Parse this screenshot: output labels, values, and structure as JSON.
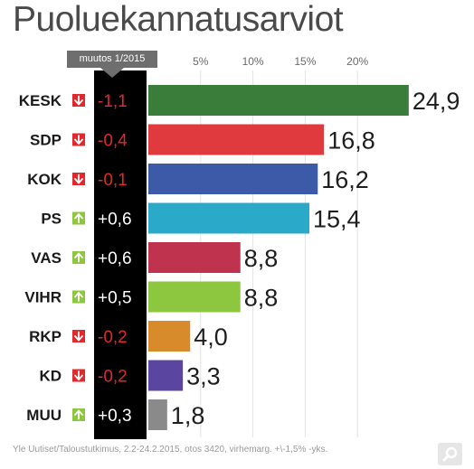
{
  "title": "Puoluekannatusarviot",
  "change_header": "muutos 1/2015",
  "source": "Yle Uutiset/Taloustutkimus, 2.2-24.2.2015, otos 3420, virhemarg. +\\-1,5% -yks.",
  "zoom_icon": "magnifier-icon",
  "colors": {
    "up_arrow": "#8dc63f",
    "down_arrow": "#e0282d",
    "change_positive_text": "#ffffff",
    "change_negative_text": "#e0282d",
    "change_column_bg": "#000000"
  },
  "chart_data": {
    "type": "bar",
    "orientation": "horizontal",
    "title": "Puoluekannatusarviot",
    "xlabel": "",
    "ylabel": "",
    "x_ticks": [
      "5%",
      "10%",
      "15%",
      "20%"
    ],
    "x_tick_values": [
      5,
      10,
      15,
      20
    ],
    "xlim": [
      0,
      25
    ],
    "grid": true,
    "categories": [
      "KESK",
      "SDP",
      "KOK",
      "PS",
      "VAS",
      "VIHR",
      "RKP",
      "KD",
      "MUU"
    ],
    "values": [
      24.9,
      16.8,
      16.2,
      15.4,
      8.8,
      8.8,
      4.0,
      3.3,
      1.8
    ],
    "value_labels": [
      "24,9",
      "16,8",
      "16,2",
      "15,4",
      "8,8",
      "8,8",
      "4,0",
      "3,3",
      "1,8"
    ],
    "changes": [
      -1.1,
      -0.4,
      -0.1,
      0.6,
      0.6,
      0.5,
      -0.2,
      -0.2,
      0.3
    ],
    "change_labels": [
      "-1,1",
      "-0,4",
      "-0,1",
      "+0,6",
      "+0,6",
      "+0,5",
      "-0,2",
      "-0,2",
      "+0,3"
    ],
    "bar_colors": [
      "#3a7d3a",
      "#e03a3e",
      "#3d5aa8",
      "#2aaac8",
      "#c0334f",
      "#8dc63f",
      "#d88b2a",
      "#5a45a0",
      "#8a8a8a"
    ]
  }
}
